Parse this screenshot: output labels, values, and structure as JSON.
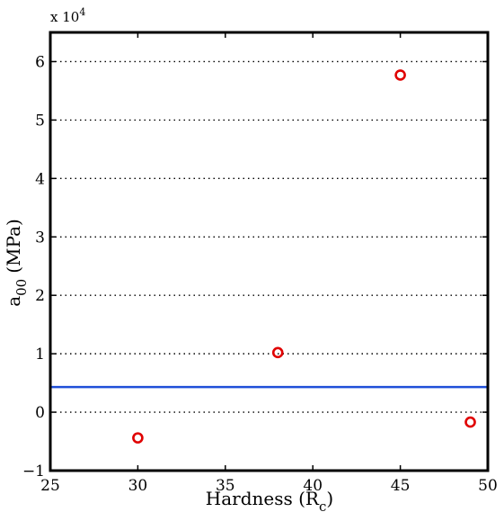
{
  "chart_data": {
    "type": "scatter",
    "xlabel": "Hardness (R",
    "xlabel_sub": "c",
    "xlabel_close": ")",
    "ylabel": "a",
    "ylabel_sub": "00",
    "ylabel_unit": "(MPa)",
    "y_multiplier_text": "x 10",
    "y_multiplier_exp": "4",
    "xlim": [
      25,
      50
    ],
    "ylim": [
      -1,
      6.5
    ],
    "y_scale_factor": 10000,
    "xticks": [
      25,
      30,
      35,
      40,
      45,
      50
    ],
    "yticks": [
      -1,
      0,
      1,
      2,
      3,
      4,
      5,
      6
    ],
    "ytick_labels": [
      "−1",
      "0",
      "1",
      "2",
      "3",
      "4",
      "5",
      "6"
    ],
    "grid": "horizontal dotted",
    "points": [
      {
        "x": 30,
        "y": -0.44
      },
      {
        "x": 38,
        "y": 1.02
      },
      {
        "x": 45,
        "y": 5.77
      },
      {
        "x": 49,
        "y": -0.17
      }
    ],
    "reference_line": {
      "y": 0.43
    },
    "colors": {
      "points": "#e00000",
      "line": "#1f4fd8",
      "grid": "#000000",
      "axes": "#000000"
    }
  }
}
